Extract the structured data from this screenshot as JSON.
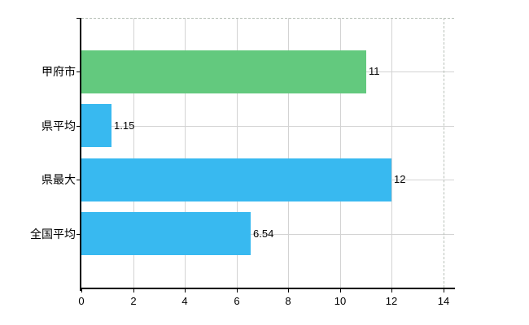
{
  "chart_data": {
    "type": "bar",
    "orientation": "horizontal",
    "title": "",
    "xlabel": "",
    "ylabel": "",
    "categories": [
      "甲府市",
      "県平均",
      "県最大",
      "全国平均"
    ],
    "values": [
      11,
      1.15,
      12,
      6.54
    ],
    "value_labels": [
      "11",
      "1.15",
      "12",
      "6.54"
    ],
    "series": [
      {
        "name": "",
        "values": [
          11,
          1.15,
          12,
          6.54
        ]
      }
    ],
    "x_ticks": [
      0,
      2,
      4,
      6,
      8,
      10,
      12,
      14
    ],
    "x_tick_labels": [
      "0",
      "2",
      "4",
      "6",
      "8",
      "10",
      "12",
      "14"
    ],
    "xlim": [
      0,
      14.4
    ],
    "grid": "on",
    "legend": "none",
    "bar_colors": [
      "#63c97e",
      "#38b9f0",
      "#38b9f0",
      "#38b9f0"
    ],
    "colors": {
      "bar_green": "#63c97e",
      "bar_blue": "#38b9f0",
      "gridline": "#d3d3d3",
      "dashed_line": "#b7bfb7",
      "axis": "#000000",
      "text": "#000000",
      "background": "#ffffff"
    }
  }
}
